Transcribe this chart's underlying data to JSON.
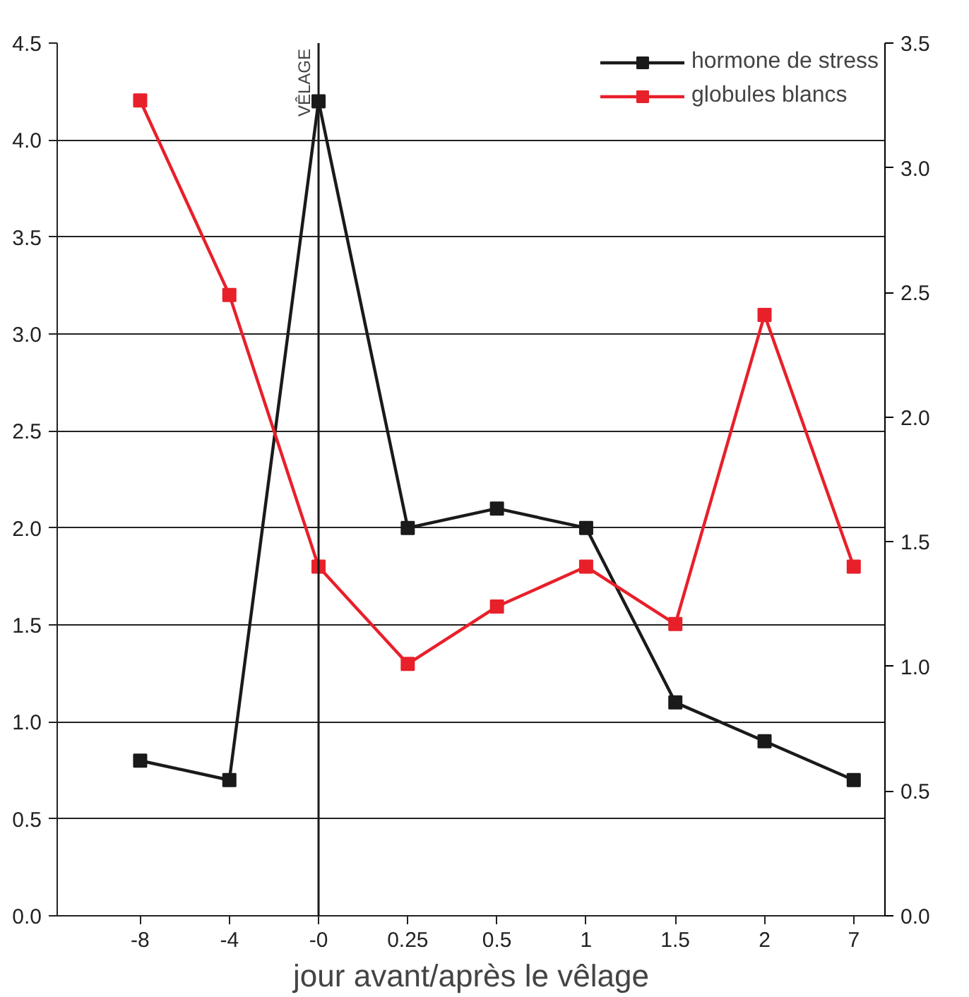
{
  "chart_data": {
    "type": "line",
    "xlabel": "jour avant/après le vêlage",
    "categories": [
      "-8",
      "-4",
      "-0",
      "0.25",
      "0.5",
      "1",
      "1.5",
      "2",
      "7"
    ],
    "series": [
      {
        "name": "hormone de stress",
        "color": "#1a1a1a",
        "values": [
          0.8,
          0.7,
          4.2,
          2.0,
          2.1,
          2.0,
          1.1,
          0.9,
          0.7
        ]
      },
      {
        "name": "globules blancs",
        "color": "#e8202a",
        "axis": "y2",
        "values": [
          3.27,
          2.49,
          1.4,
          1.01,
          1.24,
          1.4,
          1.17,
          2.41,
          1.4
        ]
      }
    ],
    "ylim": [
      0,
      4.5
    ],
    "yticks": [
      {
        "value": 0,
        "label": "0.0"
      },
      {
        "value": 0.5,
        "label": "0.5"
      },
      {
        "value": 1,
        "label": "1.0"
      },
      {
        "value": 1.5,
        "label": "1.5"
      },
      {
        "value": 2,
        "label": "2.0"
      },
      {
        "value": 2.5,
        "label": "2.5"
      },
      {
        "value": 3,
        "label": "3.0"
      },
      {
        "value": 3.5,
        "label": "3.5"
      },
      {
        "value": 4,
        "label": "4.0"
      },
      {
        "value": 4.5,
        "label": "4.5"
      }
    ],
    "y2lim": [
      0,
      3.5
    ],
    "y2ticks": [
      {
        "value": 0,
        "label": "0.0"
      },
      {
        "value": 0.5,
        "label": "0.5"
      },
      {
        "value": 1,
        "label": "1.0"
      },
      {
        "value": 1.5,
        "label": "1.5"
      },
      {
        "value": 2,
        "label": "2.0"
      },
      {
        "value": 2.5,
        "label": "2.5"
      },
      {
        "value": 3,
        "label": "3.0"
      },
      {
        "value": 3.5,
        "label": "3.5"
      }
    ],
    "ref_lines": [
      {
        "axis": "x",
        "value": "-0",
        "label": "VÊLAGE",
        "color": "#1a1a1a"
      }
    ],
    "grid": "y",
    "legend": "top",
    "marker": "square",
    "line_style": "solid"
  }
}
